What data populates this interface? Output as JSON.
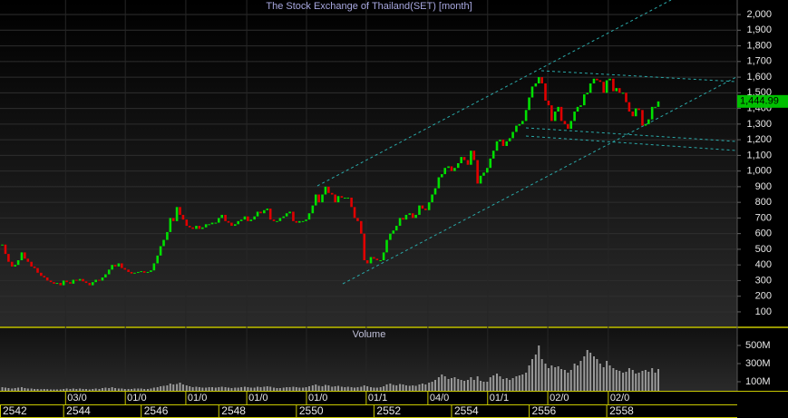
{
  "chart_data": {
    "type": "candlestick",
    "title": "The Stock Exchange of Thailand(SET) [month]",
    "volume_title": "Volume",
    "up_color": "#00e000",
    "down_color": "#e00000",
    "x": [
      2542.42,
      2542.5,
      2542.58,
      2542.67,
      2542.75,
      2542.83,
      2542.92,
      2543,
      2543.08,
      2543.17,
      2543.25,
      2543.33,
      2543.42,
      2543.5,
      2543.58,
      2543.67,
      2543.75,
      2543.83,
      2543.92,
      2544,
      2544.08,
      2544.17,
      2544.25,
      2544.33,
      2544.42,
      2544.5,
      2544.58,
      2544.67,
      2544.75,
      2544.83,
      2544.92,
      2545,
      2545.08,
      2545.17,
      2545.25,
      2545.33,
      2545.42,
      2545.5,
      2545.58,
      2545.67,
      2545.75,
      2545.83,
      2545.92,
      2546,
      2546.08,
      2546.17,
      2546.25,
      2546.33,
      2546.42,
      2546.5,
      2546.58,
      2546.67,
      2546.75,
      2546.83,
      2546.92,
      2547,
      2547.08,
      2547.17,
      2547.25,
      2547.33,
      2547.42,
      2547.5,
      2547.58,
      2547.67,
      2547.75,
      2547.83,
      2547.92,
      2548,
      2548.08,
      2548.17,
      2548.25,
      2548.33,
      2548.42,
      2548.5,
      2548.58,
      2548.67,
      2548.75,
      2548.83,
      2548.92,
      2549,
      2549.08,
      2549.17,
      2549.25,
      2549.33,
      2549.42,
      2549.5,
      2549.58,
      2549.67,
      2549.75,
      2549.83,
      2549.92,
      2550,
      2550.08,
      2550.17,
      2550.25,
      2550.33,
      2550.42,
      2550.5,
      2550.58,
      2550.67,
      2550.75,
      2550.83,
      2550.92,
      2551,
      2551.08,
      2551.17,
      2551.25,
      2551.33,
      2551.42,
      2551.5,
      2551.58,
      2551.67,
      2551.75,
      2551.83,
      2551.92,
      2552,
      2552.08,
      2552.17,
      2552.25,
      2552.33,
      2552.42,
      2552.5,
      2552.58,
      2552.67,
      2552.75,
      2552.83,
      2552.92,
      2553,
      2553.08,
      2553.17,
      2553.25,
      2553.33,
      2553.42,
      2553.5,
      2553.58,
      2553.67,
      2553.75,
      2553.83,
      2553.92,
      2554,
      2554.08,
      2554.17,
      2554.25,
      2554.33,
      2554.42,
      2554.5,
      2554.58,
      2554.67,
      2554.75,
      2554.83,
      2554.92,
      2555,
      2555.08,
      2555.17,
      2555.25,
      2555.33,
      2555.42,
      2555.5,
      2555.58,
      2555.67,
      2555.75,
      2555.83,
      2555.92,
      2556,
      2556.08,
      2556.17,
      2556.25,
      2556.33,
      2556.42,
      2556.5,
      2556.58,
      2556.67,
      2556.75,
      2556.83,
      2556.92,
      2557,
      2557.08,
      2557.17,
      2557.25,
      2557.33,
      2557.42,
      2557.5,
      2557.58,
      2557.67,
      2557.75,
      2557.83,
      2557.92,
      2558,
      2558.08,
      2558.17,
      2558.25,
      2558.33,
      2558.42,
      2558.5,
      2558.58,
      2558.67,
      2558.75,
      2558.83,
      2558.92,
      2559,
      2559.08,
      2559.17,
      2559.25,
      2559.33
    ],
    "series": [
      {
        "values": [
          530,
          470,
          420,
          390,
          400,
          430,
          480,
          440,
          420,
          390,
          380,
          350,
          330,
          320,
          300,
          290,
          280,
          285,
          270,
          300,
          290,
          280,
          305,
          300,
          310,
          295,
          285,
          270,
          290,
          305,
          300,
          320,
          340,
          370,
          400,
          390,
          410,
          380,
          370,
          355,
          345,
          350,
          355,
          360,
          350,
          355,
          365,
          410,
          460,
          520,
          560,
          610,
          700,
          680,
          770,
          720,
          690,
          650,
          640,
          630,
          650,
          630,
          640,
          660,
          660,
          670,
          670,
          700,
          720,
          680,
          670,
          650,
          660,
          680,
          690,
          710,
          680,
          690,
          710,
          740,
          730,
          750,
          760,
          690,
          680,
          680,
          700,
          710,
          730,
          740,
          680,
          670,
          680,
          680,
          690,
          730,
          780,
          850,
          800,
          850,
          900,
          860,
          850,
          800,
          840,
          830,
          830,
          830,
          770,
          700,
          680,
          600,
          430,
          410,
          450,
          440,
          430,
          430,
          480,
          560,
          600,
          620,
          650,
          700,
          690,
          720,
          730,
          700,
          720,
          780,
          760,
          750,
          800,
          850,
          890,
          960,
          980,
          1020,
          1030,
          1000,
          1020,
          1050,
          1090,
          1070,
          1040,
          1130,
          1070,
          920,
          970,
          990,
          1020,
          1080,
          1130,
          1190,
          1200,
          1160,
          1190,
          1210,
          1250,
          1290,
          1300,
          1320,
          1390,
          1470,
          1540,
          1560,
          1600,
          1560,
          1450,
          1420,
          1320,
          1380,
          1410,
          1320,
          1300,
          1270,
          1320,
          1380,
          1410,
          1420,
          1490,
          1500,
          1560,
          1590,
          1580,
          1570,
          1500,
          1580,
          1590,
          1510,
          1530,
          1500,
          1500,
          1440,
          1380,
          1350,
          1400,
          1390,
          1290,
          1300,
          1330,
          1410,
          1410,
          1444.99
        ]
      },
      {
        "name": "Volume",
        "axis": "y2",
        "color": "#9a9a9a",
        "values": [
          40,
          35,
          30,
          25,
          30,
          35,
          40,
          30,
          25,
          25,
          20,
          20,
          18,
          20,
          18,
          15,
          15,
          15,
          15,
          20,
          25,
          20,
          25,
          20,
          25,
          20,
          20,
          15,
          20,
          25,
          20,
          30,
          35,
          30,
          40,
          30,
          25,
          25,
          20,
          20,
          20,
          25,
          25,
          25,
          20,
          20,
          25,
          35,
          40,
          50,
          55,
          60,
          80,
          70,
          75,
          90,
          70,
          60,
          50,
          40,
          45,
          40,
          35,
          35,
          40,
          40,
          35,
          40,
          45,
          40,
          35,
          30,
          35,
          35,
          40,
          45,
          40,
          35,
          35,
          45,
          40,
          45,
          50,
          45,
          35,
          30,
          30,
          35,
          40,
          40,
          45,
          40,
          35,
          35,
          40,
          50,
          60,
          70,
          55,
          50,
          65,
          60,
          45,
          50,
          55,
          45,
          40,
          45,
          40,
          35,
          40,
          45,
          60,
          50,
          40,
          35,
          35,
          40,
          50,
          70,
          80,
          65,
          60,
          75,
          70,
          60,
          55,
          60,
          55,
          70,
          80,
          70,
          90,
          100,
          120,
          150,
          180,
          160,
          130,
          140,
          150,
          130,
          120,
          110,
          120,
          150,
          120,
          160,
          110,
          100,
          100,
          150,
          170,
          190,
          160,
          130,
          140,
          120,
          140,
          160,
          170,
          180,
          200,
          280,
          350,
          400,
          500,
          350,
          300,
          250,
          280,
          260,
          270,
          240,
          230,
          200,
          230,
          300,
          280,
          330,
          380,
          450,
          420,
          380,
          350,
          300,
          260,
          330,
          280,
          250,
          230,
          220,
          200,
          210,
          250,
          230,
          190,
          200,
          220,
          230,
          210,
          250,
          200,
          240
        ]
      }
    ],
    "last_value": {
      "value": 1444.99,
      "label": "1,444.99"
    },
    "xlim": [
      2542.36,
      2561.34
    ],
    "xticks": [
      2542,
      2544,
      2546,
      2548,
      2550,
      2552,
      2554,
      2556,
      2558
    ],
    "xticks_top": [
      {
        "value": 2544.05,
        "label": "03/0"
      },
      {
        "value": 2545.59,
        "label": "01/0"
      },
      {
        "value": 2547.15,
        "label": "01/0"
      },
      {
        "value": 2548.72,
        "label": "01/0"
      },
      {
        "value": 2550.26,
        "label": "01/0"
      },
      {
        "value": 2551.8,
        "label": "01/1"
      },
      {
        "value": 2553.39,
        "label": "04/0"
      },
      {
        "value": 2554.93,
        "label": "01/1"
      },
      {
        "value": 2556.48,
        "label": "02/0"
      },
      {
        "value": 2558.04,
        "label": "02/0"
      }
    ],
    "ylim": [
      7,
      2093
    ],
    "yticks": [
      100,
      200,
      300,
      400,
      500,
      600,
      700,
      800,
      900,
      {
        "value": 1000,
        "label": "1,000"
      },
      {
        "value": 1100,
        "label": "1,100"
      },
      {
        "value": 1200,
        "label": "1,200"
      },
      {
        "value": 1300,
        "label": "1,300"
      },
      {
        "value": 1400,
        "label": "1,400"
      },
      {
        "value": 1500,
        "label": "1,500"
      },
      {
        "value": 1600,
        "label": "1,600"
      },
      {
        "value": 1700,
        "label": "1,700"
      },
      {
        "value": 1800,
        "label": "1,800"
      },
      {
        "value": 1900,
        "label": "1,900"
      },
      {
        "value": 2000,
        "label": "2,000"
      }
    ],
    "y2lim": [
      0,
      660
    ],
    "y2ticks": [
      {
        "value": 100,
        "label": "100M"
      },
      {
        "value": 300,
        "label": "300M"
      },
      {
        "value": 500,
        "label": "500M"
      }
    ],
    "grid": true
  }
}
